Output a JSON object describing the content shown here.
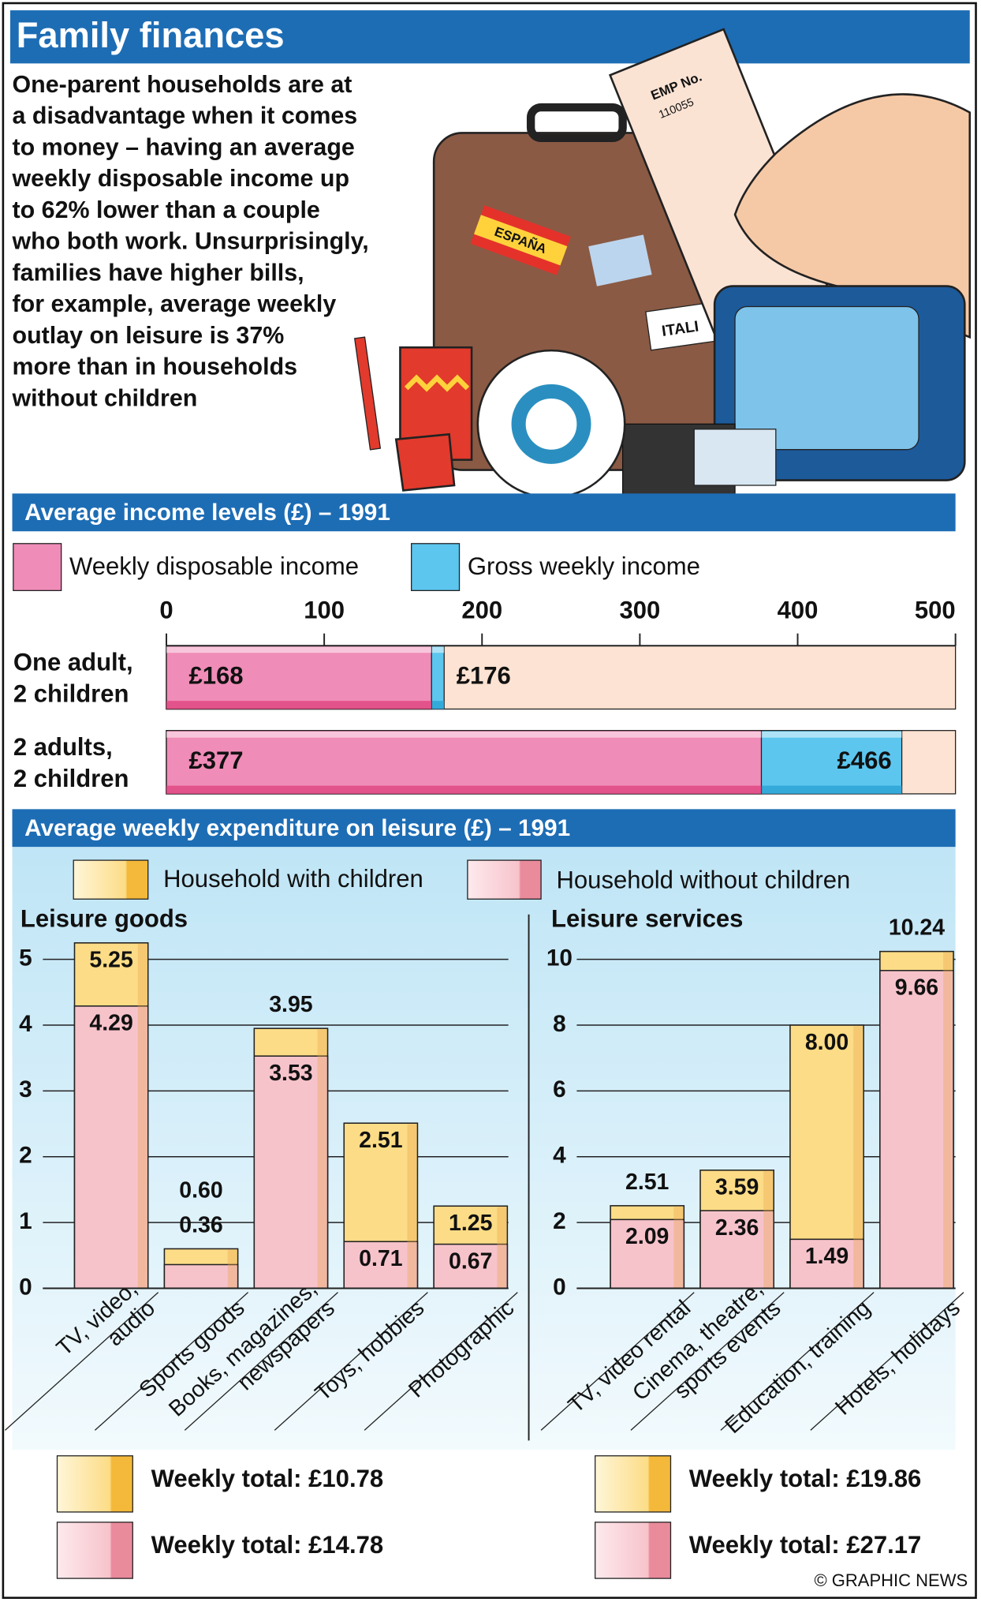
{
  "title": "Family finances",
  "intro": [
    "One-parent households are at",
    "a disadvantage when it comes",
    "to money – having an average",
    "weekly disposable income up",
    "to 62% lower than a couple",
    "who both work. Unsurprisingly,",
    "families have higher bills,",
    "for example, average weekly",
    "outlay on leisure is 37%",
    "more than in households",
    "without children"
  ],
  "illustration": {
    "labels": [
      "ESPAÑA",
      "ITALI",
      "EMP No.",
      "110055"
    ]
  },
  "chart_data": [
    {
      "type": "bar",
      "horizontal": true,
      "title": "Average income levels (£) – 1991",
      "categories": [
        "One adult,\n2 children",
        "2 adults,\n2 children"
      ],
      "series": [
        {
          "name": "Weekly disposable income",
          "color": "#f08cb8",
          "values": [
            168,
            377
          ],
          "value_labels": [
            "£168",
            "£377"
          ]
        },
        {
          "name": "Gross weekly income",
          "color": "#5cc6ef",
          "values": [
            176,
            466
          ],
          "value_labels": [
            "£176",
            "£466"
          ]
        }
      ],
      "xlim": [
        0,
        500
      ],
      "xticks": [
        0,
        100,
        200,
        300,
        400,
        500
      ]
    },
    {
      "type": "bar",
      "section_title": "Average weekly expenditure on leisure (£) – 1991",
      "title": "Leisure goods",
      "categories": [
        "TV, video,\naudio",
        "Sports goods",
        "Books, magazines,\nnewspapers",
        "Toys, hobbies",
        "Photographic"
      ],
      "series": [
        {
          "name": "Household with children",
          "color": "#fcdc86",
          "values": [
            5.25,
            0.6,
            3.95,
            2.51,
            1.25
          ],
          "value_labels": [
            "5.25",
            "0.60",
            "3.95",
            "2.51",
            "1.25"
          ]
        },
        {
          "name": "Household without children",
          "color": "#f7c3cb",
          "values": [
            4.29,
            0.36,
            3.53,
            0.71,
            0.67
          ]
        }
      ],
      "ylim": [
        0,
        5
      ],
      "yticks": [
        0,
        1,
        2,
        3,
        4,
        5
      ],
      "grid": true,
      "totals": [
        "Weekly total: £10.78",
        "Weekly total: £14.78"
      ]
    },
    {
      "type": "bar",
      "title": "Leisure services",
      "categories": [
        "TV, video rental",
        "Cinema, theatre,\nsports events",
        "Education, training",
        "Hotels, holidays"
      ],
      "series": [
        {
          "name": "Household with children",
          "color": "#fcdc86",
          "values": [
            2.51,
            3.59,
            8.0,
            10.24
          ],
          "value_labels": [
            "2.51",
            "3.59",
            "8.00",
            "10.24"
          ]
        },
        {
          "name": "Household without children",
          "color": "#f7c3cb",
          "values": [
            2.09,
            2.36,
            1.49,
            9.66
          ]
        }
      ],
      "ylim": [
        0,
        10
      ],
      "yticks": [
        0,
        2,
        4,
        6,
        8,
        10
      ],
      "grid": true,
      "totals": [
        "Weekly total: £19.86",
        "Weekly total: £27.17"
      ]
    }
  ],
  "credit": "© GRAPHIC NEWS"
}
